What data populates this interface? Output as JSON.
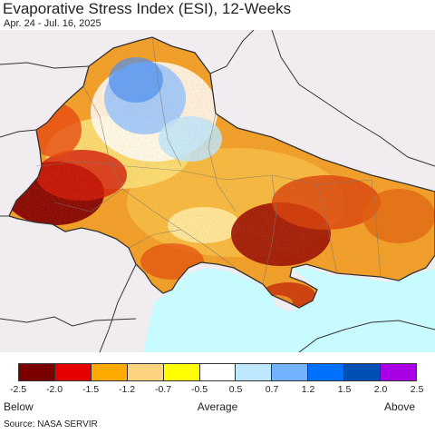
{
  "header": {
    "title": "Evaporative Stress Index (ESI), 12-Weeks",
    "subtitle": "Apr. 24 - Jul. 16, 2025"
  },
  "map": {
    "region": "Ukraine",
    "colors": {
      "water": "#c8fbfd",
      "outside": "#f0ecef",
      "border": "#333333",
      "province_line": "#777777"
    }
  },
  "legend": {
    "swatches": [
      {
        "color": "#7a0000"
      },
      {
        "color": "#e60000"
      },
      {
        "color": "#ffaa00"
      },
      {
        "color": "#fcd37f"
      },
      {
        "color": "#ffff00"
      },
      {
        "color": "#ffffff"
      },
      {
        "color": "#bee8ff"
      },
      {
        "color": "#73b2ff"
      },
      {
        "color": "#0070ff"
      },
      {
        "color": "#0050b4"
      },
      {
        "color": "#a900e6"
      }
    ],
    "ticks": [
      "-2.5",
      "-2.0",
      "-1.5",
      "-1.2",
      "-0.7",
      "-0.5",
      "0.5",
      "0.7",
      "1.2",
      "1.5",
      "2.0",
      "2.5"
    ],
    "low_label": "Below",
    "mid_label": "Average",
    "high_label": "Above"
  },
  "footer": {
    "source": "Source: NASA SERVIR"
  }
}
